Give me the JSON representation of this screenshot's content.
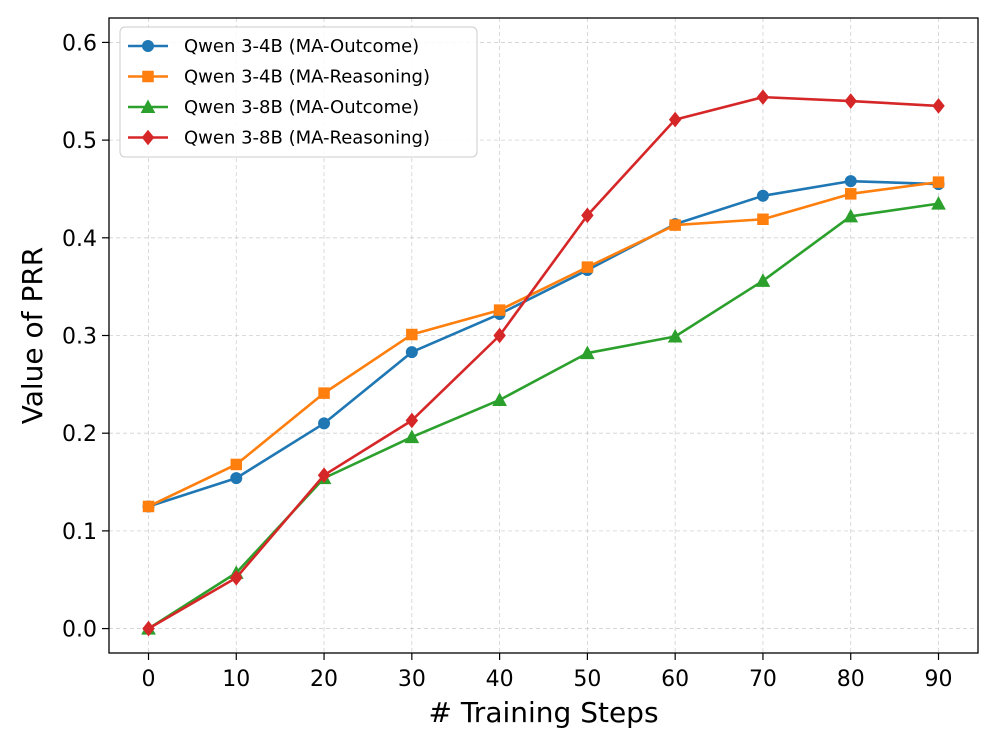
{
  "chart_data": {
    "type": "line",
    "title": "",
    "xlabel": "# Training Steps",
    "ylabel": "Value of PRR",
    "x": [
      0,
      10,
      20,
      30,
      40,
      50,
      60,
      70,
      80,
      90
    ],
    "xlim": [
      -4.5,
      94.5
    ],
    "ylim": [
      -0.025,
      0.625
    ],
    "xticks": [
      "0",
      "10",
      "20",
      "30",
      "40",
      "50",
      "60",
      "70",
      "80",
      "90"
    ],
    "yticks": [
      "0.0",
      "0.1",
      "0.2",
      "0.3",
      "0.4",
      "0.5",
      "0.6"
    ],
    "grid": true,
    "legend_position": "top-left",
    "series": [
      {
        "name": "Qwen 3-4B (MA-Outcome)",
        "color": "#1f77b4",
        "marker": "circle",
        "values": [
          0.125,
          0.154,
          0.21,
          0.283,
          0.322,
          0.367,
          0.414,
          0.443,
          0.458,
          0.455
        ]
      },
      {
        "name": "Qwen 3-4B (MA-Reasoning)",
        "color": "#ff7f0e",
        "marker": "square",
        "values": [
          0.125,
          0.168,
          0.241,
          0.301,
          0.326,
          0.37,
          0.413,
          0.419,
          0.445,
          0.457
        ]
      },
      {
        "name": "Qwen 3-8B (MA-Outcome)",
        "color": "#2ca02c",
        "marker": "triangle",
        "values": [
          0.0,
          0.057,
          0.154,
          0.196,
          0.234,
          0.282,
          0.299,
          0.356,
          0.422,
          0.435
        ]
      },
      {
        "name": "Qwen 3-8B (MA-Reasoning)",
        "color": "#d62728",
        "marker": "diamond",
        "values": [
          0.0,
          0.052,
          0.157,
          0.213,
          0.3,
          0.423,
          0.521,
          0.544,
          0.54,
          0.535
        ]
      }
    ]
  }
}
